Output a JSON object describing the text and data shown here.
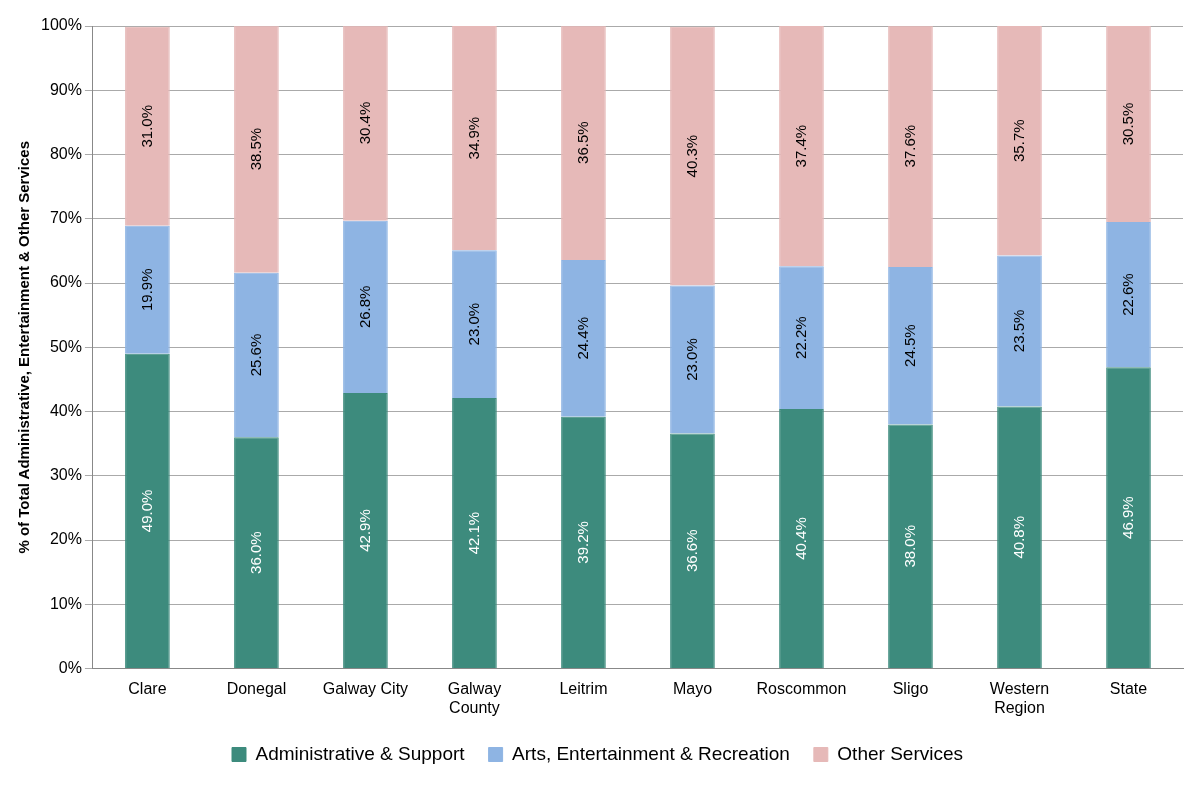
{
  "chart_data": {
    "type": "bar",
    "stacked": true,
    "ylabel": "% of Total Administrative, Entertainment & Other Services",
    "categories": [
      "Clare",
      "Donegal",
      "Galway City",
      "Galway County",
      "Leitrim",
      "Mayo",
      "Roscommon",
      "Sligo",
      "Western Region",
      "State"
    ],
    "series": [
      {
        "name": "Administrative & Support",
        "color": "#3d8b7d",
        "values": [
          49.0,
          36.0,
          42.9,
          42.1,
          39.2,
          36.6,
          40.4,
          38.0,
          40.8,
          46.9
        ],
        "value_labels": [
          "49.0%",
          "36.0%",
          "42.9%",
          "42.1%",
          "39.2%",
          "36.6%",
          "40.4%",
          "38.0%",
          "40.8%",
          "46.9%"
        ]
      },
      {
        "name": "Arts, Entertainment & Recreation",
        "color": "#8eb4e3",
        "values": [
          19.9,
          25.6,
          26.8,
          23.0,
          24.4,
          23.0,
          22.2,
          24.5,
          23.5,
          22.6
        ],
        "value_labels": [
          "19.9%",
          "25.6%",
          "26.8%",
          "23.0%",
          "24.4%",
          "23.0%",
          "22.2%",
          "24.5%",
          "23.5%",
          "22.6%"
        ]
      },
      {
        "name": "Other Services",
        "color": "#e6b9b8",
        "values": [
          31.0,
          38.5,
          30.4,
          34.9,
          36.5,
          40.3,
          37.4,
          37.6,
          35.7,
          30.5
        ],
        "value_labels": [
          "31.0%",
          "38.5%",
          "30.4%",
          "34.9%",
          "36.5%",
          "40.3%",
          "37.4%",
          "37.6%",
          "35.7%",
          "30.5%"
        ]
      }
    ],
    "ylim": [
      0,
      100
    ],
    "yticks": [
      {
        "value": 0,
        "label": "0%"
      },
      {
        "value": 10,
        "label": "10%"
      },
      {
        "value": 20,
        "label": "20%"
      },
      {
        "value": 30,
        "label": "30%"
      },
      {
        "value": 40,
        "label": "40%"
      },
      {
        "value": 50,
        "label": "50%"
      },
      {
        "value": 60,
        "label": "60%"
      },
      {
        "value": 70,
        "label": "70%"
      },
      {
        "value": 80,
        "label": "80%"
      },
      {
        "value": 90,
        "label": "90%"
      },
      {
        "value": 100,
        "label": "100%"
      }
    ],
    "grid": "y",
    "legend": "bottom"
  }
}
